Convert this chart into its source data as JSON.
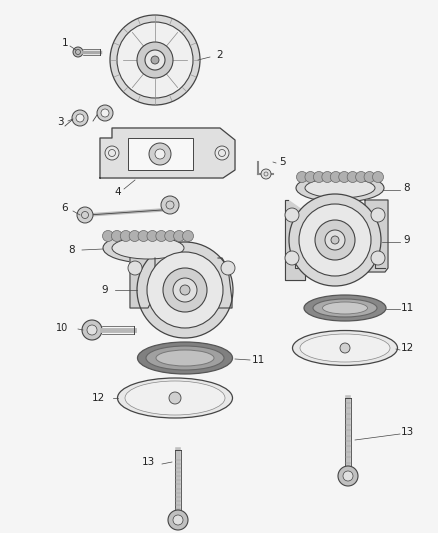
{
  "bg_color": "#f5f5f5",
  "line_color": "#444444",
  "dark_color": "#222222",
  "gray1": "#888888",
  "gray2": "#aaaaaa",
  "gray3": "#cccccc",
  "gray4": "#666666",
  "fig_width": 4.38,
  "fig_height": 5.33,
  "dpi": 100,
  "xlim": [
    0,
    438
  ],
  "ylim": [
    0,
    533
  ]
}
